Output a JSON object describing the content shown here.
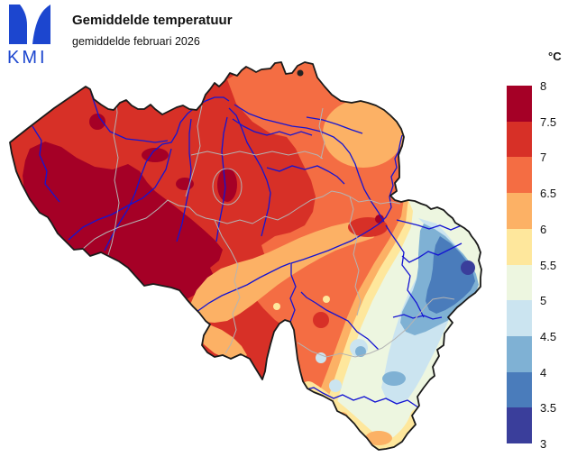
{
  "logo": {
    "text": "KMI",
    "color": "#1c46cf"
  },
  "header": {
    "title": "Gemiddelde temperatuur",
    "subtitle": "gemiddelde februari 2026"
  },
  "colorbar": {
    "unit_label": "°C",
    "tick_labels": [
      "8",
      "7.5",
      "7",
      "6.5",
      "6",
      "5.5",
      "5",
      "4.5",
      "4",
      "3.5",
      "3"
    ],
    "band_keys": [
      "t80",
      "t75",
      "t70",
      "t65",
      "t60",
      "t55",
      "t50",
      "t45",
      "t40",
      "t35"
    ],
    "band_ranges_c": [
      "7.5–8",
      "7–7.5",
      "6.5–7",
      "6–6.5",
      "5.5–6",
      "5–5.5",
      "4.5–5",
      "4–4.5",
      "3.5–4",
      "3–3.5"
    ]
  },
  "palette": {
    "t80": "#a50026",
    "t75": "#d73027",
    "t70": "#f46d43",
    "t65": "#fcb165",
    "t60": "#fee79c",
    "t55": "#edf6e0",
    "t50": "#cbe4f0",
    "t45": "#7fb1d4",
    "t40": "#4a7cbb",
    "t35": "#3a3e9b"
  },
  "styles": {
    "river": "#1414d2",
    "province": "#b4b4b4",
    "border": "#1a1a1a",
    "background": "#ffffff"
  },
  "map_data": {
    "type": "filled-contour temperature map",
    "value_unit": "°C",
    "scale_min": 3,
    "scale_max": 8,
    "scale_step": 0.5,
    "pattern": {
      "west_flanders_hainaut": "7.5–8",
      "central_flanders_brussels": "7–7.5",
      "antwerp_limburg_condroz": "6.5–7",
      "northeast_limburg_hesbaye": "6–6.5",
      "famenne_south_border": "5.5–6",
      "central_ardennes": "5–5.5",
      "east_ardennes": "4–5",
      "high_fens_east_border": "3–4"
    }
  }
}
